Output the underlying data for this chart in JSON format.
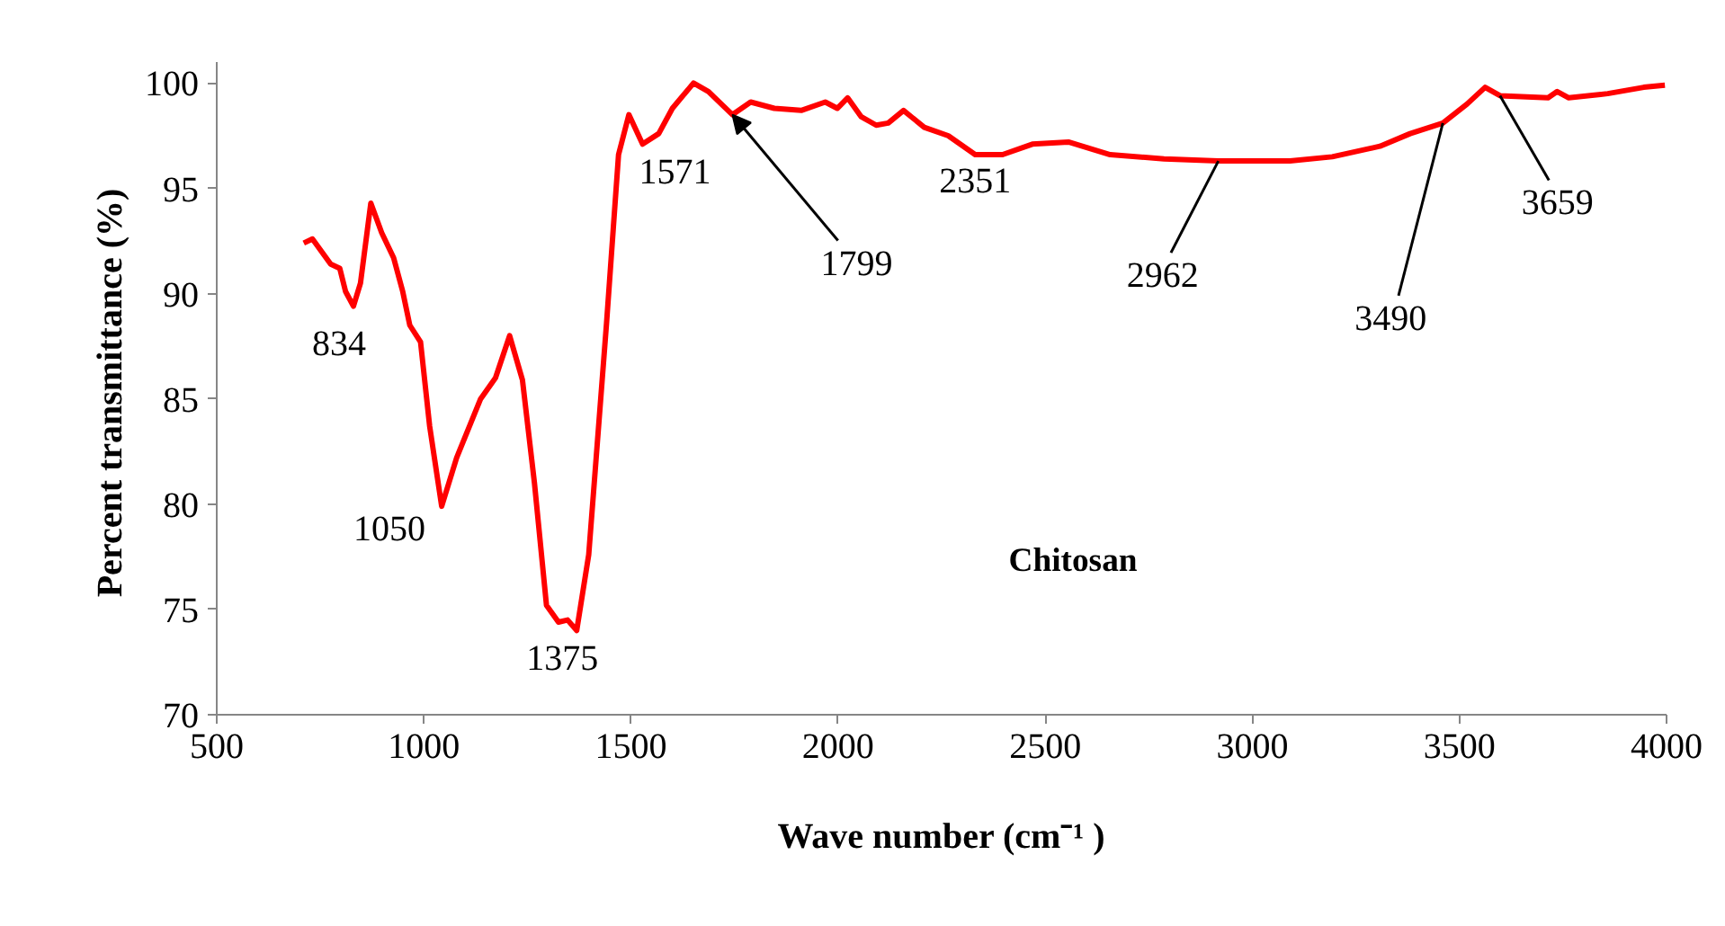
{
  "chart_data": {
    "type": "line",
    "xlabel": "Wave number (cm⁻¹ )",
    "ylabel": "Percent transmittance  (%)",
    "xlim": [
      500,
      4000
    ],
    "ylim": [
      70,
      101
    ],
    "xticks": [
      500,
      1000,
      1500,
      2000,
      2500,
      3000,
      3500,
      4000
    ],
    "yticks": [
      70,
      75,
      80,
      85,
      90,
      95,
      100
    ],
    "grid": false,
    "marker": "none",
    "line_style": "solid",
    "series": [
      {
        "name": "Chitosan",
        "color": "#ff0000",
        "x": [
          710,
          731,
          753,
          775,
          797,
          811,
          830,
          847,
          872,
          898,
          927,
          949,
          966,
          992,
          1014,
          1043,
          1079,
          1137,
          1173,
          1207,
          1238,
          1267,
          1296,
          1325,
          1347,
          1369,
          1398,
          1441,
          1470,
          1495,
          1528,
          1567,
          1600,
          1651,
          1687,
          1745,
          1789,
          1846,
          1911,
          1969,
          1998,
          2023,
          2056,
          2092,
          2121,
          2158,
          2208,
          2266,
          2331,
          2397,
          2469,
          2556,
          2657,
          2787,
          2918,
          3091,
          3193,
          3308,
          3381,
          3460,
          3518,
          3562,
          3598,
          3714,
          3736,
          3764,
          3858,
          3945,
          3996
        ],
        "values": [
          92.4,
          92.6,
          92.0,
          91.4,
          91.2,
          90.1,
          89.4,
          90.5,
          94.3,
          92.9,
          91.7,
          90.1,
          88.5,
          87.7,
          83.7,
          79.9,
          82.2,
          85.0,
          86.0,
          88.0,
          85.9,
          81.0,
          75.2,
          74.4,
          74.5,
          74.0,
          77.6,
          88.6,
          96.6,
          98.5,
          97.1,
          97.6,
          98.8,
          100.0,
          99.6,
          98.5,
          99.1,
          98.8,
          98.7,
          99.1,
          98.8,
          99.3,
          98.4,
          98.0,
          98.1,
          98.7,
          97.9,
          97.5,
          96.6,
          96.6,
          97.1,
          97.2,
          96.6,
          96.4,
          96.3,
          96.3,
          96.5,
          97.0,
          97.6,
          98.1,
          99.0,
          99.8,
          99.4,
          99.3,
          99.6,
          99.3,
          99.5,
          99.8,
          99.9
        ]
      }
    ],
    "annotations": [
      {
        "text": "834",
        "x": 830,
        "y": 89.4
      },
      {
        "text": "1050",
        "x": 1043,
        "y": 79.9
      },
      {
        "text": "1375",
        "x": 1369,
        "y": 74.0
      },
      {
        "text": "1571",
        "x": 1528,
        "y": 97.1
      },
      {
        "text": "1799",
        "x": 1745,
        "y": 98.5
      },
      {
        "text": "2351",
        "x": 2331,
        "y": 96.6
      },
      {
        "text": "2962",
        "x": 2918,
        "y": 96.3
      },
      {
        "text": "3490",
        "x": 3460,
        "y": 98.1
      },
      {
        "text": "3659",
        "x": 3598,
        "y": 99.4
      }
    ]
  }
}
